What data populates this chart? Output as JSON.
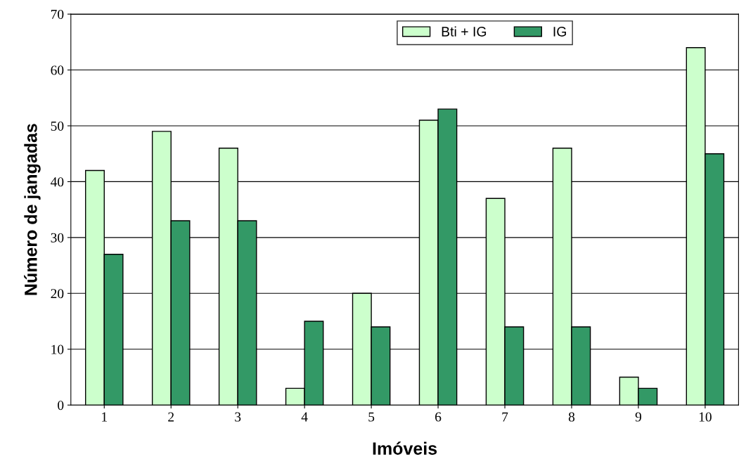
{
  "chart_data": {
    "type": "bar",
    "xlabel": "Imóveis",
    "ylabel": "Número de jangadas",
    "categories": [
      "1",
      "2",
      "3",
      "4",
      "5",
      "6",
      "7",
      "8",
      "9",
      "10"
    ],
    "series": [
      {
        "name": "Bti + IG",
        "color": "#ccffcc",
        "values": [
          42,
          49,
          46,
          3,
          20,
          51,
          37,
          46,
          5,
          64
        ]
      },
      {
        "name": "IG",
        "color": "#339966",
        "values": [
          27,
          33,
          33,
          15,
          14,
          53,
          14,
          14,
          3,
          45
        ]
      }
    ],
    "ylim": [
      0,
      70
    ],
    "yticks": [
      0,
      10,
      20,
      30,
      40,
      50,
      60,
      70
    ],
    "grid": "y",
    "legend": "top"
  }
}
